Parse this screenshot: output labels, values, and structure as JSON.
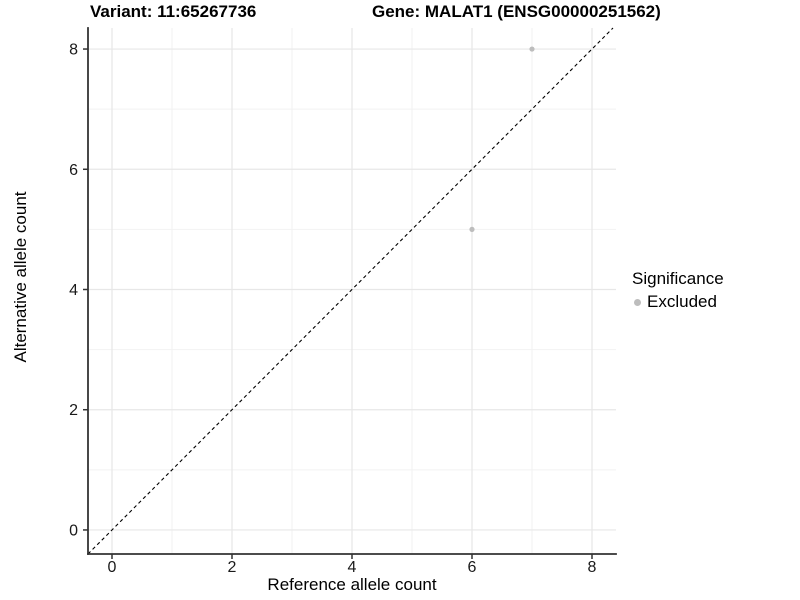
{
  "chart_data": {
    "type": "scatter",
    "title_left": "Variant: 11:65267736",
    "title_right": "Gene: MALAT1 (ENSG00000251562)",
    "xlabel": "Reference allele count",
    "ylabel": "Alternative allele count",
    "xlim": [
      -0.4,
      8.4
    ],
    "ylim": [
      -0.4,
      8.35
    ],
    "x_ticks": [
      0,
      2,
      4,
      6,
      8
    ],
    "y_ticks": [
      0,
      2,
      4,
      6,
      8
    ],
    "grid": {
      "minor": [
        1,
        3,
        5,
        7
      ],
      "major_color": "#e7e7e7",
      "minor_color": "#f2f2f2"
    },
    "points": [
      {
        "x": 7,
        "y": 8,
        "significance": "Excluded"
      },
      {
        "x": 6,
        "y": 5,
        "significance": "Excluded"
      }
    ],
    "point_color": "#bdbdbd",
    "reference_line": {
      "kind": "identity y=x",
      "style": "dashed",
      "color": "#000000"
    },
    "legend": {
      "title": "Significance",
      "position": "right",
      "items": [
        {
          "label": "Excluded",
          "color": "#bdbdbd"
        }
      ]
    },
    "axis_style": {
      "line_color": "#333333",
      "tick_text_color": "#1a1a1a"
    }
  }
}
